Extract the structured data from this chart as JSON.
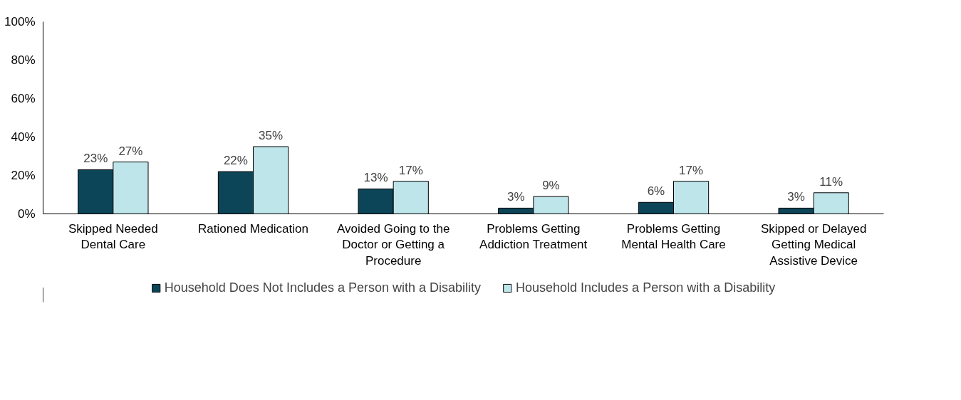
{
  "chart_data": {
    "type": "bar",
    "categories": [
      "Skipped Needed Dental Care",
      "Rationed Medication",
      "Avoided Going to the Doctor or Getting a Procedure",
      "Problems Getting Addiction Treatment",
      "Problems Getting Mental Health Care",
      "Skipped or Delayed Getting Medical Assistive Device"
    ],
    "series": [
      {
        "name": "Household Does Not Includes a Person with a Disability",
        "color": "#0d4558",
        "values": [
          23,
          22,
          13,
          3,
          6,
          3
        ],
        "value_labels": [
          "23%",
          "22%",
          "13%",
          "3%",
          "6%",
          "3%"
        ]
      },
      {
        "name": "Household Includes a Person with a Disability",
        "color": "#bee5ea",
        "values": [
          27,
          35,
          17,
          9,
          17,
          11
        ],
        "value_labels": [
          "27%",
          "35%",
          "17%",
          "9%",
          "17%",
          "11%"
        ]
      }
    ],
    "ylim": [
      0,
      100
    ],
    "yticks": [
      {
        "value": 0,
        "label": "0%"
      },
      {
        "value": 20,
        "label": "20%"
      },
      {
        "value": 40,
        "label": "40%"
      },
      {
        "value": 60,
        "label": "60%"
      },
      {
        "value": 80,
        "label": "80%"
      },
      {
        "value": 100,
        "label": "100%"
      }
    ],
    "grid": false,
    "legend": "bottom"
  }
}
